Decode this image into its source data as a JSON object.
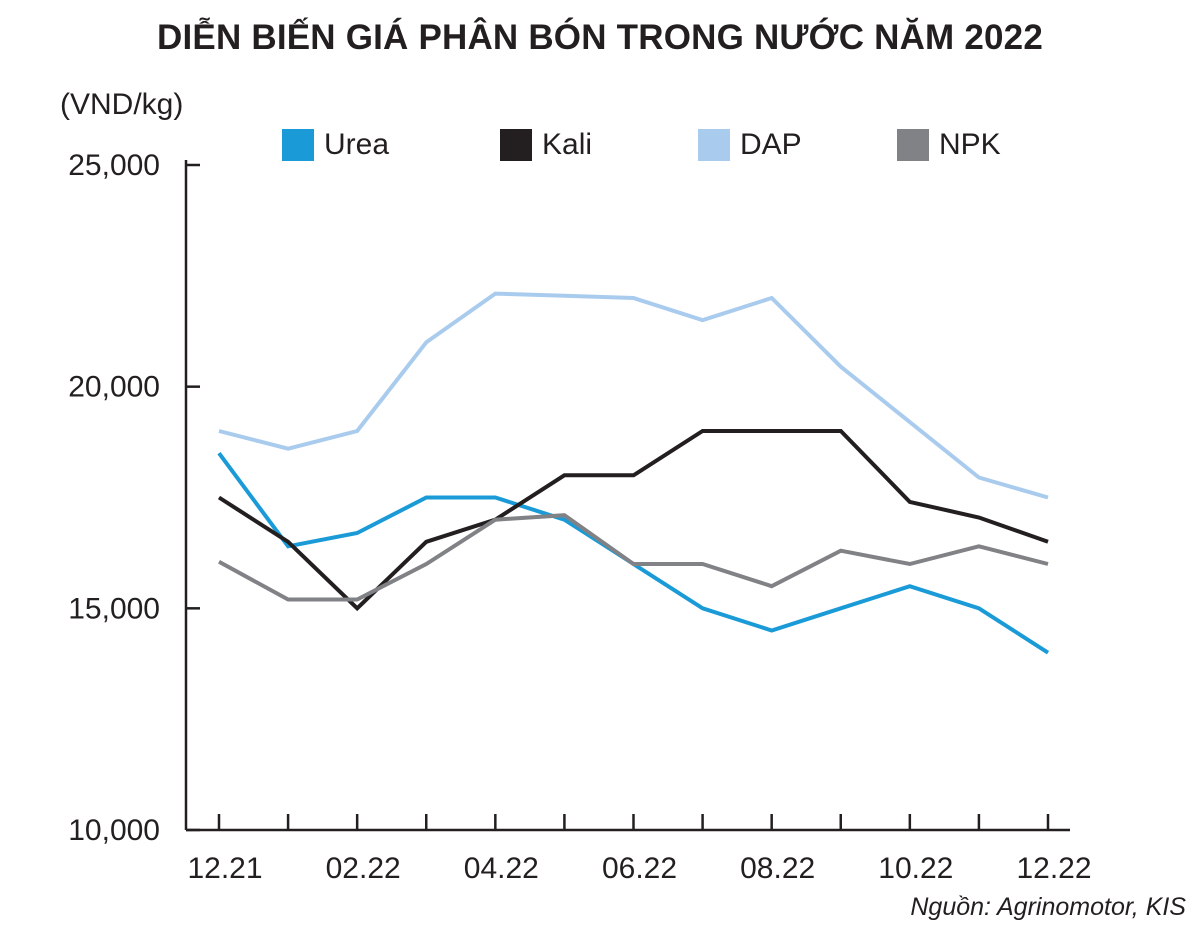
{
  "chart_data": {
    "type": "line",
    "title": "DIỄN BIẾN GIÁ PHÂN BÓN TRONG NƯỚC NĂM 2022",
    "ylabel": "(VND/kg)",
    "ylim": [
      10000,
      25000
    ],
    "yticks": [
      10000,
      15000,
      20000,
      25000
    ],
    "ytick_labels": [
      "10,000",
      "15,000",
      "20,000",
      "25,000"
    ],
    "x": [
      "12.21",
      "01.22",
      "02.22",
      "03.22",
      "04.22",
      "05.22",
      "06.22",
      "07.22",
      "08.22",
      "09.22",
      "10.22",
      "11.22",
      "12.22"
    ],
    "xtick_labels": [
      "12.21",
      "",
      "02.22",
      "",
      "04.22",
      "",
      "06.22",
      "",
      "08.22",
      "",
      "10.22",
      "",
      "12.22"
    ],
    "grid": false,
    "legend_placement": "top",
    "series": [
      {
        "name": "Urea",
        "color": "#1a9bd7",
        "values": [
          18500,
          16400,
          16700,
          17500,
          17500,
          17000,
          16000,
          15000,
          14500,
          15000,
          15500,
          15000,
          14000
        ]
      },
      {
        "name": "Kali",
        "color": "#231f20",
        "values": [
          17500,
          16500,
          15000,
          16500,
          17000,
          18000,
          18000,
          19000,
          19000,
          19000,
          17400,
          17050,
          16500
        ]
      },
      {
        "name": "DAP",
        "color": "#a9cbed",
        "values": [
          19000,
          18600,
          19000,
          21000,
          22100,
          22050,
          22000,
          21500,
          22000,
          20450,
          19200,
          17950,
          17500
        ]
      },
      {
        "name": "NPK",
        "color": "#808285",
        "values": [
          16050,
          15200,
          15200,
          16000,
          17000,
          17100,
          16000,
          16000,
          15500,
          16300,
          16000,
          16400,
          16000
        ]
      }
    ],
    "source": "Nguồn: Agrinomotor, KIS"
  },
  "icons": {
    "legend_swatch": "square-swatch-icon"
  }
}
